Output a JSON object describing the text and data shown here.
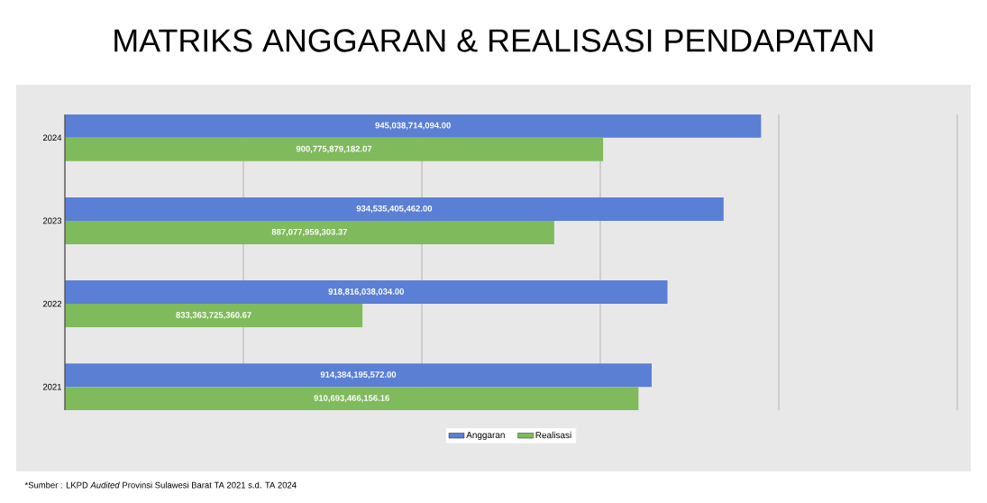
{
  "chart_data": {
    "type": "bar",
    "orientation": "horizontal",
    "title": "MATRIKS ANGGARAN & REALISASI PENDAPATAN",
    "categories": [
      "2024",
      "2023",
      "2022",
      "2021"
    ],
    "series": [
      {
        "name": "Anggaran",
        "color": "#5b7fd4",
        "values": [
          945038714094.0,
          934535405462.0,
          918816038034.0,
          914384195572.0
        ],
        "value_labels": [
          "945,038,714,094.00",
          "934,535,405,462.00",
          "918,816,038,034.00",
          "914,384,195,572.00"
        ]
      },
      {
        "name": "Realisasi",
        "color": "#7fba5c",
        "values": [
          900775879182.07,
          887077959303.37,
          833363725360.67,
          910693466156.16
        ],
        "value_labels": [
          "900,775,879,182.07",
          "887,077,959,303.37",
          "833,363,725,360.67",
          "910,693,466,156.16"
        ]
      }
    ],
    "xlim": [
      750000000000,
      1000000000000
    ],
    "xticks": [
      {
        "value": 750000000000,
        "label": null
      },
      {
        "value": 800000000000,
        "label": null
      },
      {
        "value": 850000000000,
        "label": null
      },
      {
        "value": 900000000000,
        "label": null
      },
      {
        "value": 950000000000,
        "label": null
      },
      {
        "value": 1000000000000,
        "label": null
      }
    ],
    "grid": "x",
    "legend": "bottom",
    "tick_labels": "y",
    "annotations": [
      "*Sumber : LKPD *Audited* Provinsi Sulawesi Barat TA 2021 s.d. TA 2024"
    ]
  }
}
